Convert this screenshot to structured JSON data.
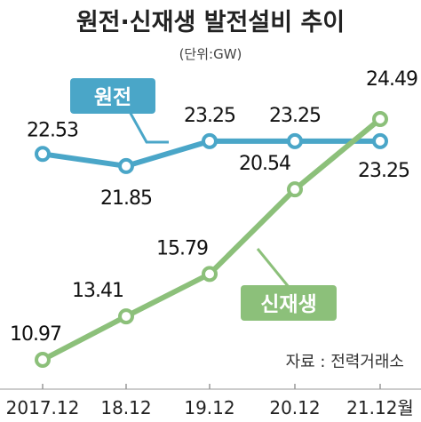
{
  "chart_data": {
    "type": "line",
    "title": "원전·신재생 발전설비 추이",
    "unit": "(단위:GW)",
    "source": "자료 : 전력거래소",
    "categories": [
      "2017.12",
      "18.12",
      "19.12",
      "20.12",
      "21.12월"
    ],
    "ylim": [
      10,
      25.5
    ],
    "grid": false,
    "series": [
      {
        "name": "원전",
        "values": [
          22.53,
          21.85,
          23.25,
          23.25,
          23.25
        ],
        "labels": [
          "22.53",
          "21.85",
          "23.25",
          "23.25",
          "23.25"
        ],
        "color": "#4aa6c8"
      },
      {
        "name": "신재생",
        "values": [
          10.97,
          13.41,
          15.79,
          20.54,
          24.49
        ],
        "labels": [
          "10.97",
          "13.41",
          "15.79",
          "20.54",
          "24.49"
        ],
        "color": "#8cc07a"
      }
    ]
  }
}
